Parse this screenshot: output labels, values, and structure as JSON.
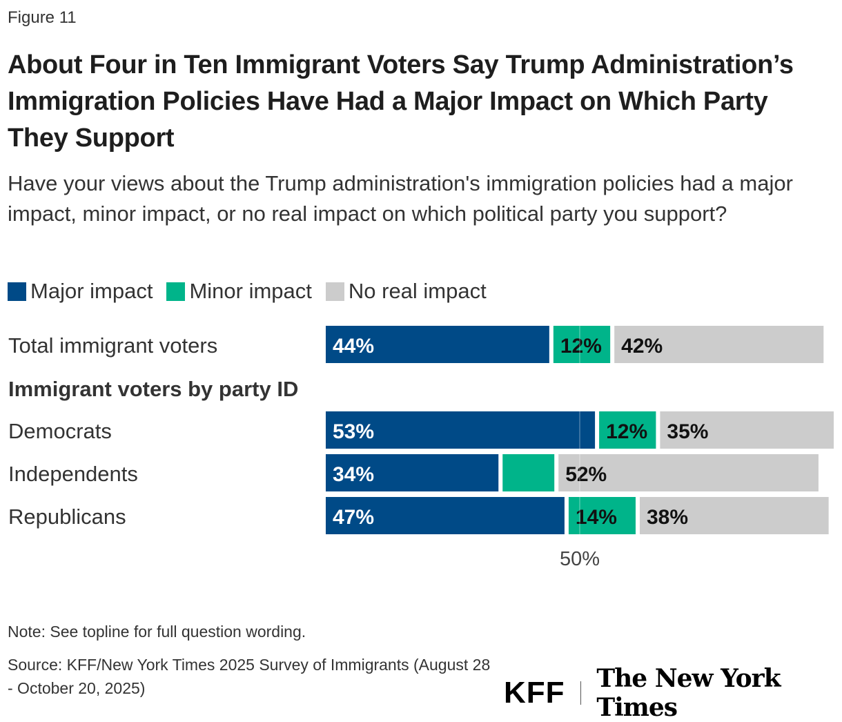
{
  "figure_label": "Figure 11",
  "title": "About Four in Ten Immigrant Voters Say Trump Administration’s Immigration Policies Have Had a Major Impact on Which Party They Support",
  "subtitle": "Have your views about the Trump administration's immigration policies had a major impact, minor impact, or no real impact on which political party you support?",
  "note": "Note: See topline for full question wording.",
  "source": "Source: KFF/New York Times 2025 Survey of Immigrants (August 28 - October 20, 2025)",
  "logos": {
    "kff": "KFF",
    "nyt": "The New York Times"
  },
  "chart_data": {
    "type": "bar",
    "orientation": "horizontal",
    "stacked": true,
    "categories": [
      "Total immigrant voters",
      "Democrats",
      "Independents",
      "Republicans"
    ],
    "group_heading": "Immigrant voters by party ID",
    "series": [
      {
        "name": "Major impact",
        "color": "#004a87",
        "values": [
          44,
          53,
          34,
          47
        ],
        "labels": [
          "44%",
          "53%",
          "34%",
          "47%"
        ]
      },
      {
        "name": "Minor impact",
        "color": "#00b48a",
        "values": [
          12,
          12,
          11,
          14
        ],
        "labels": [
          "12%",
          "12%",
          "",
          "14%"
        ]
      },
      {
        "name": "No real impact",
        "color": "#cccccc",
        "values": [
          42,
          35,
          52,
          38
        ],
        "labels": [
          "42%",
          "35%",
          "52%",
          "38%"
        ]
      }
    ],
    "xlim": [
      0,
      100
    ],
    "reference_line": {
      "value": 50,
      "label": "50%"
    },
    "legend_position": "top-left"
  }
}
